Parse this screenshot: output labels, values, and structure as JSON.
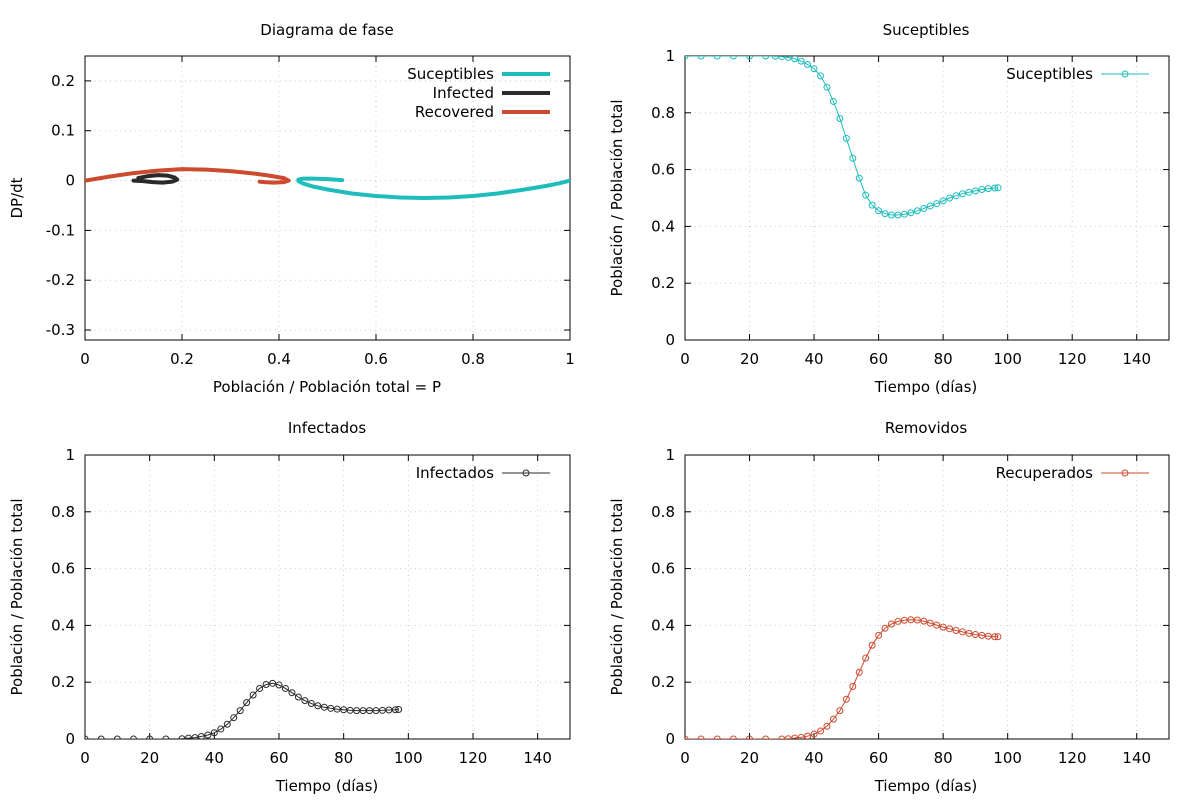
{
  "colors": {
    "suceptibles": "#1fbcbc",
    "infected": "#2a2a2a",
    "recovered": "#cc4a2e",
    "grid": "#cccccc"
  },
  "chart_data": [
    {
      "id": "fase",
      "type": "line",
      "title": "Diagrama de fase",
      "xlabel": "Población / Población total  = P",
      "ylabel": "DP/dt",
      "xlim": [
        0,
        1
      ],
      "ylim": [
        -0.32,
        0.25
      ],
      "xticks": [
        0,
        0.2,
        0.4,
        0.6,
        0.8,
        1
      ],
      "xtick_labels": [
        "0",
        "0.2",
        "0.4",
        "0.6",
        "0.8",
        "1"
      ],
      "yticks": [
        0.2,
        0.1,
        0,
        -0.1,
        -0.2,
        -0.3
      ],
      "ytick_labels": [
        "0.2",
        "0.1",
        "0",
        "-0.1",
        "-0.2",
        "-0.3"
      ],
      "legend_position": "top-right",
      "series": [
        {
          "name": "Suceptibles",
          "color_key": "suceptibles",
          "x": [
            1.0,
            0.98,
            0.95,
            0.9,
            0.85,
            0.8,
            0.75,
            0.7,
            0.65,
            0.6,
            0.55,
            0.5,
            0.47,
            0.45,
            0.44,
            0.44,
            0.45,
            0.47,
            0.5,
            0.53
          ],
          "y": [
            0.0,
            -0.005,
            -0.011,
            -0.019,
            -0.026,
            -0.031,
            -0.034,
            -0.035,
            -0.034,
            -0.031,
            -0.026,
            -0.018,
            -0.012,
            -0.006,
            -0.001,
            0.002,
            0.004,
            0.004,
            0.003,
            0.001
          ]
        },
        {
          "name": "Infected",
          "color_key": "infected",
          "x": [
            0.1,
            0.12,
            0.14,
            0.16,
            0.18,
            0.19,
            0.185,
            0.17,
            0.15,
            0.13,
            0.11
          ],
          "y": [
            0.0,
            -0.001,
            -0.003,
            -0.004,
            -0.002,
            0.002,
            0.006,
            0.01,
            0.011,
            0.009,
            0.005
          ]
        },
        {
          "name": "Recovered",
          "color_key": "recovered",
          "x": [
            0.0,
            0.05,
            0.1,
            0.15,
            0.2,
            0.25,
            0.3,
            0.35,
            0.38,
            0.41,
            0.42,
            0.41,
            0.39,
            0.37,
            0.36
          ],
          "y": [
            0.0,
            0.008,
            0.015,
            0.02,
            0.023,
            0.022,
            0.019,
            0.014,
            0.01,
            0.005,
            0.0,
            -0.003,
            -0.004,
            -0.003,
            -0.002
          ]
        }
      ]
    },
    {
      "id": "suceptibles",
      "type": "scatter",
      "title": "Suceptibles",
      "xlabel": "Tiempo (días)",
      "ylabel": "Población / Población total",
      "xlim": [
        0,
        150
      ],
      "ylim": [
        0,
        1
      ],
      "xticks": [
        0,
        20,
        40,
        60,
        80,
        100,
        120,
        140
      ],
      "xtick_labels": [
        "0",
        "20",
        "40",
        "60",
        "80",
        "100",
        "120",
        "140"
      ],
      "yticks": [
        0,
        0.2,
        0.4,
        0.6,
        0.8,
        1
      ],
      "ytick_labels": [
        "0",
        "0.2",
        "0.4",
        "0.6",
        "0.8",
        "1"
      ],
      "legend_position": "top-right",
      "series": [
        {
          "name": "Suceptibles",
          "color_key": "suceptibles",
          "x": [
            0,
            5,
            10,
            15,
            20,
            25,
            28,
            30,
            32,
            34,
            36,
            38,
            40,
            42,
            44,
            46,
            48,
            50,
            52,
            54,
            56,
            58,
            60,
            62,
            64,
            66,
            68,
            70,
            72,
            74,
            76,
            78,
            80,
            82,
            84,
            86,
            88,
            90,
            92,
            94,
            96,
            97
          ],
          "y": [
            1.0,
            1.0,
            1.0,
            1.0,
            1.0,
            1.0,
            0.999,
            0.998,
            0.995,
            0.99,
            0.982,
            0.97,
            0.955,
            0.93,
            0.89,
            0.84,
            0.78,
            0.71,
            0.64,
            0.57,
            0.51,
            0.475,
            0.455,
            0.445,
            0.44,
            0.44,
            0.443,
            0.448,
            0.455,
            0.463,
            0.472,
            0.48,
            0.49,
            0.5,
            0.508,
            0.515,
            0.52,
            0.525,
            0.53,
            0.533,
            0.535,
            0.536
          ]
        }
      ]
    },
    {
      "id": "infectados",
      "type": "scatter",
      "title": "Infectados",
      "xlabel": "Tiempo (días)",
      "ylabel": "Población / Población total",
      "xlim": [
        0,
        150
      ],
      "ylim": [
        0,
        1
      ],
      "xticks": [
        0,
        20,
        40,
        60,
        80,
        100,
        120,
        140
      ],
      "xtick_labels": [
        "0",
        "20",
        "40",
        "60",
        "80",
        "100",
        "120",
        "140"
      ],
      "yticks": [
        0,
        0.2,
        0.4,
        0.6,
        0.8,
        1
      ],
      "ytick_labels": [
        "0",
        "0.2",
        "0.4",
        "0.6",
        "0.8",
        "1"
      ],
      "legend_position": "top-right",
      "series": [
        {
          "name": "Infectados",
          "color_key": "infected",
          "x": [
            0,
            5,
            10,
            15,
            20,
            25,
            30,
            32,
            34,
            36,
            38,
            40,
            42,
            44,
            46,
            48,
            50,
            52,
            54,
            56,
            58,
            60,
            62,
            64,
            66,
            68,
            70,
            72,
            74,
            76,
            78,
            80,
            82,
            84,
            86,
            88,
            90,
            92,
            94,
            96,
            97
          ],
          "y": [
            0.0,
            0.0,
            0.0,
            0.0,
            0.0,
            0.0,
            0.001,
            0.003,
            0.005,
            0.009,
            0.014,
            0.022,
            0.035,
            0.052,
            0.075,
            0.1,
            0.128,
            0.155,
            0.178,
            0.192,
            0.196,
            0.19,
            0.178,
            0.163,
            0.148,
            0.135,
            0.125,
            0.117,
            0.112,
            0.108,
            0.105,
            0.103,
            0.101,
            0.1,
            0.1,
            0.1,
            0.1,
            0.101,
            0.102,
            0.103,
            0.104
          ]
        }
      ]
    },
    {
      "id": "removidos",
      "type": "scatter",
      "title": "Removidos",
      "xlabel": "Tiempo (días)",
      "ylabel": "Población / Población total",
      "xlim": [
        0,
        150
      ],
      "ylim": [
        0,
        1
      ],
      "xticks": [
        0,
        20,
        40,
        60,
        80,
        100,
        120,
        140
      ],
      "xtick_labels": [
        "0",
        "20",
        "40",
        "60",
        "80",
        "100",
        "120",
        "140"
      ],
      "yticks": [
        0,
        0.2,
        0.4,
        0.6,
        0.8,
        1
      ],
      "ytick_labels": [
        "0",
        "0.2",
        "0.4",
        "0.6",
        "0.8",
        "1"
      ],
      "legend_position": "top-right",
      "series": [
        {
          "name": "Recuperados",
          "color_key": "recovered",
          "x": [
            0,
            5,
            10,
            15,
            20,
            25,
            30,
            32,
            34,
            36,
            38,
            40,
            42,
            44,
            46,
            48,
            50,
            52,
            54,
            56,
            58,
            60,
            62,
            64,
            66,
            68,
            70,
            72,
            74,
            76,
            78,
            80,
            82,
            84,
            86,
            88,
            90,
            92,
            94,
            96,
            97
          ],
          "y": [
            0.0,
            0.0,
            0.0,
            0.0,
            0.0,
            0.0,
            0.0,
            0.001,
            0.003,
            0.006,
            0.01,
            0.017,
            0.028,
            0.045,
            0.07,
            0.1,
            0.14,
            0.185,
            0.235,
            0.285,
            0.33,
            0.365,
            0.39,
            0.405,
            0.414,
            0.418,
            0.42,
            0.419,
            0.415,
            0.408,
            0.401,
            0.394,
            0.388,
            0.382,
            0.377,
            0.372,
            0.368,
            0.365,
            0.362,
            0.36,
            0.36
          ]
        }
      ]
    }
  ]
}
